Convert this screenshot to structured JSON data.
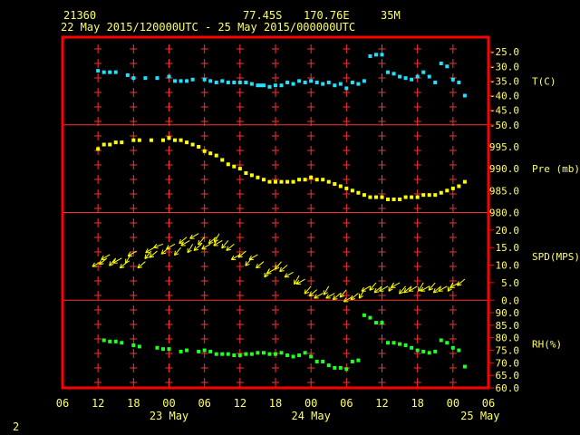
{
  "header": {
    "station": "21360",
    "lat": "77.45S",
    "lon": "170.76E",
    "elev": "35M",
    "range": "22 May 2015/120000UTC - 25 May 2015/000000UTC"
  },
  "footer": {
    "page": "2"
  },
  "colors": {
    "frame": "#ff0000",
    "grid": "#ff3030",
    "temp": "#22e0ff",
    "pres": "#ffff00",
    "wind": "#ffff00",
    "rh": "#22ff22",
    "label": "#ffff66"
  },
  "chart_data": {
    "type": "scatter",
    "x_axis": {
      "unit": "hours since 22 May 06UTC",
      "ticks": [
        "06",
        "12",
        "18",
        "00",
        "06",
        "12",
        "18",
        "00",
        "06",
        "12",
        "18",
        "00",
        "06"
      ],
      "dates": [
        "23 May",
        "24 May",
        "25 May"
      ],
      "range": [
        0,
        72
      ]
    },
    "panels": [
      {
        "name": "T(C)",
        "ylim": [
          -50,
          -20
        ],
        "ticks": [
          "-25.0",
          "-30.0",
          "-35.0",
          "-40.0",
          "-45.0",
          "-50.0"
        ],
        "tick_values": [
          -25,
          -30,
          -35,
          -40,
          -45,
          -50
        ],
        "x": [
          6,
          7,
          8,
          9,
          11,
          12,
          14,
          16,
          18,
          19,
          20,
          21,
          22,
          24,
          25,
          26,
          27,
          28,
          29,
          30,
          31,
          32,
          33,
          33.5,
          34,
          35,
          36,
          37,
          38,
          39,
          40,
          41,
          42,
          43,
          44,
          45,
          46,
          47,
          48,
          49,
          50,
          51,
          52,
          53,
          54,
          55,
          56,
          57,
          58,
          59,
          60,
          61,
          62,
          63,
          64,
          65,
          66,
          67,
          68
        ],
        "y": [
          -31.5,
          -32,
          -32,
          -32,
          -33,
          -34,
          -34,
          -34,
          -33.5,
          -35,
          -35,
          -35,
          -34.5,
          -34.5,
          -35,
          -35.5,
          -35,
          -35.5,
          -35.5,
          -35.5,
          -35.5,
          -36,
          -36.5,
          -36.5,
          -36.5,
          -37,
          -36.5,
          -36.5,
          -35.5,
          -36,
          -35,
          -35.5,
          -35,
          -35.5,
          -36,
          -35.5,
          -36.5,
          -36,
          -37.5,
          -35.5,
          -36,
          -35,
          -26.5,
          -26,
          -26,
          -32,
          -32.5,
          -33.5,
          -34,
          -34.5,
          -33.5,
          -32,
          -33.5,
          -35.5,
          -29,
          -30,
          -34.5,
          -35.5,
          -40
        ],
        "label_color": "temp"
      },
      {
        "name": "Pre (mb)",
        "ylim": [
          980,
          1000
        ],
        "ticks": [
          "995.0",
          "990.0",
          "985.0",
          "980.0"
        ],
        "tick_values": [
          995,
          990,
          985,
          980
        ],
        "x": [
          6,
          7,
          8,
          9,
          10,
          12,
          13,
          15,
          17,
          18,
          19,
          20,
          21,
          22,
          23,
          24,
          25,
          26,
          27,
          28,
          29,
          30,
          31,
          32,
          33,
          34,
          35,
          36,
          37,
          38,
          39,
          40,
          41,
          42,
          43,
          44,
          45,
          46,
          47,
          48,
          49,
          50,
          51,
          52,
          53,
          54,
          55,
          56,
          57,
          58,
          59,
          60,
          61,
          62,
          63,
          64,
          65,
          66,
          67,
          68
        ],
        "y": [
          994.5,
          995.5,
          995.5,
          996,
          996,
          996.5,
          996.5,
          996.5,
          996.5,
          997,
          996.5,
          996.5,
          996,
          995.5,
          995,
          994,
          993.5,
          993,
          992,
          991,
          990.5,
          990,
          989,
          988.5,
          988,
          987.5,
          987,
          987,
          987,
          987,
          987,
          987.5,
          987.5,
          988,
          987.5,
          987.5,
          987,
          986.5,
          986,
          985.5,
          985,
          984.5,
          984,
          983.5,
          983.5,
          983.5,
          983,
          983,
          983,
          983.5,
          983.5,
          983.5,
          984,
          984,
          984,
          984.5,
          985,
          985.5,
          986,
          987
        ],
        "label_color": "pres"
      },
      {
        "name": "SPD(MPS)",
        "ylim": [
          0,
          25
        ],
        "ticks": [
          "20.0",
          "15.0",
          "10.0",
          "5.0",
          "0.0"
        ],
        "tick_values": [
          20,
          15,
          10,
          5,
          0
        ],
        "x": [
          6.5,
          7.5,
          8,
          9,
          10,
          11,
          11.5,
          12.5,
          14,
          15,
          15.5,
          16,
          17,
          18,
          19,
          20,
          21,
          21.5,
          22,
          23,
          23.5,
          24,
          25,
          26,
          26.5,
          27,
          28,
          29,
          30,
          31,
          32,
          33,
          34,
          35,
          36,
          37,
          38,
          39,
          40,
          41,
          42,
          43,
          44,
          45,
          46,
          47,
          48,
          49,
          50,
          51,
          52,
          53,
          54,
          55,
          56,
          57,
          58,
          59,
          60,
          61,
          62,
          63,
          64,
          65,
          66,
          67,
          68
        ],
        "y": [
          11,
          12,
          13,
          12,
          12,
          11,
          13,
          14,
          11,
          14,
          15,
          14,
          16,
          15,
          16,
          15,
          18,
          17,
          16,
          19,
          16,
          18,
          16,
          18,
          19,
          17,
          17,
          16,
          13,
          14,
          12,
          13,
          11,
          9,
          9,
          11,
          10,
          8,
          7,
          6,
          4,
          3,
          2,
          4,
          2,
          2,
          3,
          1,
          2,
          3,
          4,
          5,
          4,
          4,
          5,
          5,
          4,
          4,
          4,
          5,
          4,
          5,
          4,
          4,
          5,
          5,
          6
        ],
        "wind_dir_deg": [
          300,
          310,
          300,
          320,
          300,
          310,
          330,
          300,
          310,
          320,
          300,
          310,
          290,
          310,
          300,
          320,
          310,
          300,
          330,
          300,
          310,
          320,
          300,
          310,
          330,
          300,
          320,
          310,
          300,
          310,
          320,
          300,
          310,
          330,
          300,
          320,
          310,
          300,
          330,
          300,
          320,
          310,
          300,
          330,
          300,
          310,
          320,
          300,
          310,
          330,
          300,
          320,
          310,
          300,
          330,
          300,
          320,
          310,
          300,
          330,
          300,
          320,
          310,
          300,
          330,
          300,
          310
        ],
        "label_color": "wind"
      },
      {
        "name": "RH(%)",
        "ylim": [
          60,
          95
        ],
        "ticks": [
          "90.0",
          "85.0",
          "80.0",
          "75.0",
          "70.0",
          "65.0",
          "60.0"
        ],
        "tick_values": [
          90,
          85,
          80,
          75,
          70,
          65,
          60
        ],
        "x": [
          7,
          8,
          9,
          10,
          12,
          13,
          16,
          17,
          18,
          20,
          21,
          23,
          24,
          25,
          26,
          27,
          28,
          29,
          30,
          31,
          32,
          33,
          34,
          35,
          36,
          37,
          38,
          39,
          40,
          41,
          42,
          43,
          44,
          45,
          46,
          47,
          48,
          49,
          50,
          51,
          52,
          53,
          54,
          55,
          56,
          57,
          58,
          59,
          60,
          61,
          62,
          63,
          64,
          65,
          66,
          67,
          68
        ],
        "y": [
          79,
          78.5,
          78.5,
          78,
          77,
          76.5,
          76,
          75.5,
          75.5,
          74.5,
          75,
          74.5,
          75,
          74.5,
          73.5,
          73.5,
          73.5,
          73,
          73,
          73.5,
          73.5,
          74,
          74,
          73.5,
          73.5,
          74,
          73,
          72.5,
          73,
          74,
          72.5,
          70.5,
          70.5,
          69,
          68,
          68,
          67.5,
          70.5,
          71,
          89,
          88,
          86,
          86,
          78,
          78,
          77.5,
          77,
          76,
          75,
          74.5,
          74,
          74.5,
          79,
          78,
          76,
          75,
          68.5
        ],
        "label_color": "rh"
      }
    ]
  }
}
